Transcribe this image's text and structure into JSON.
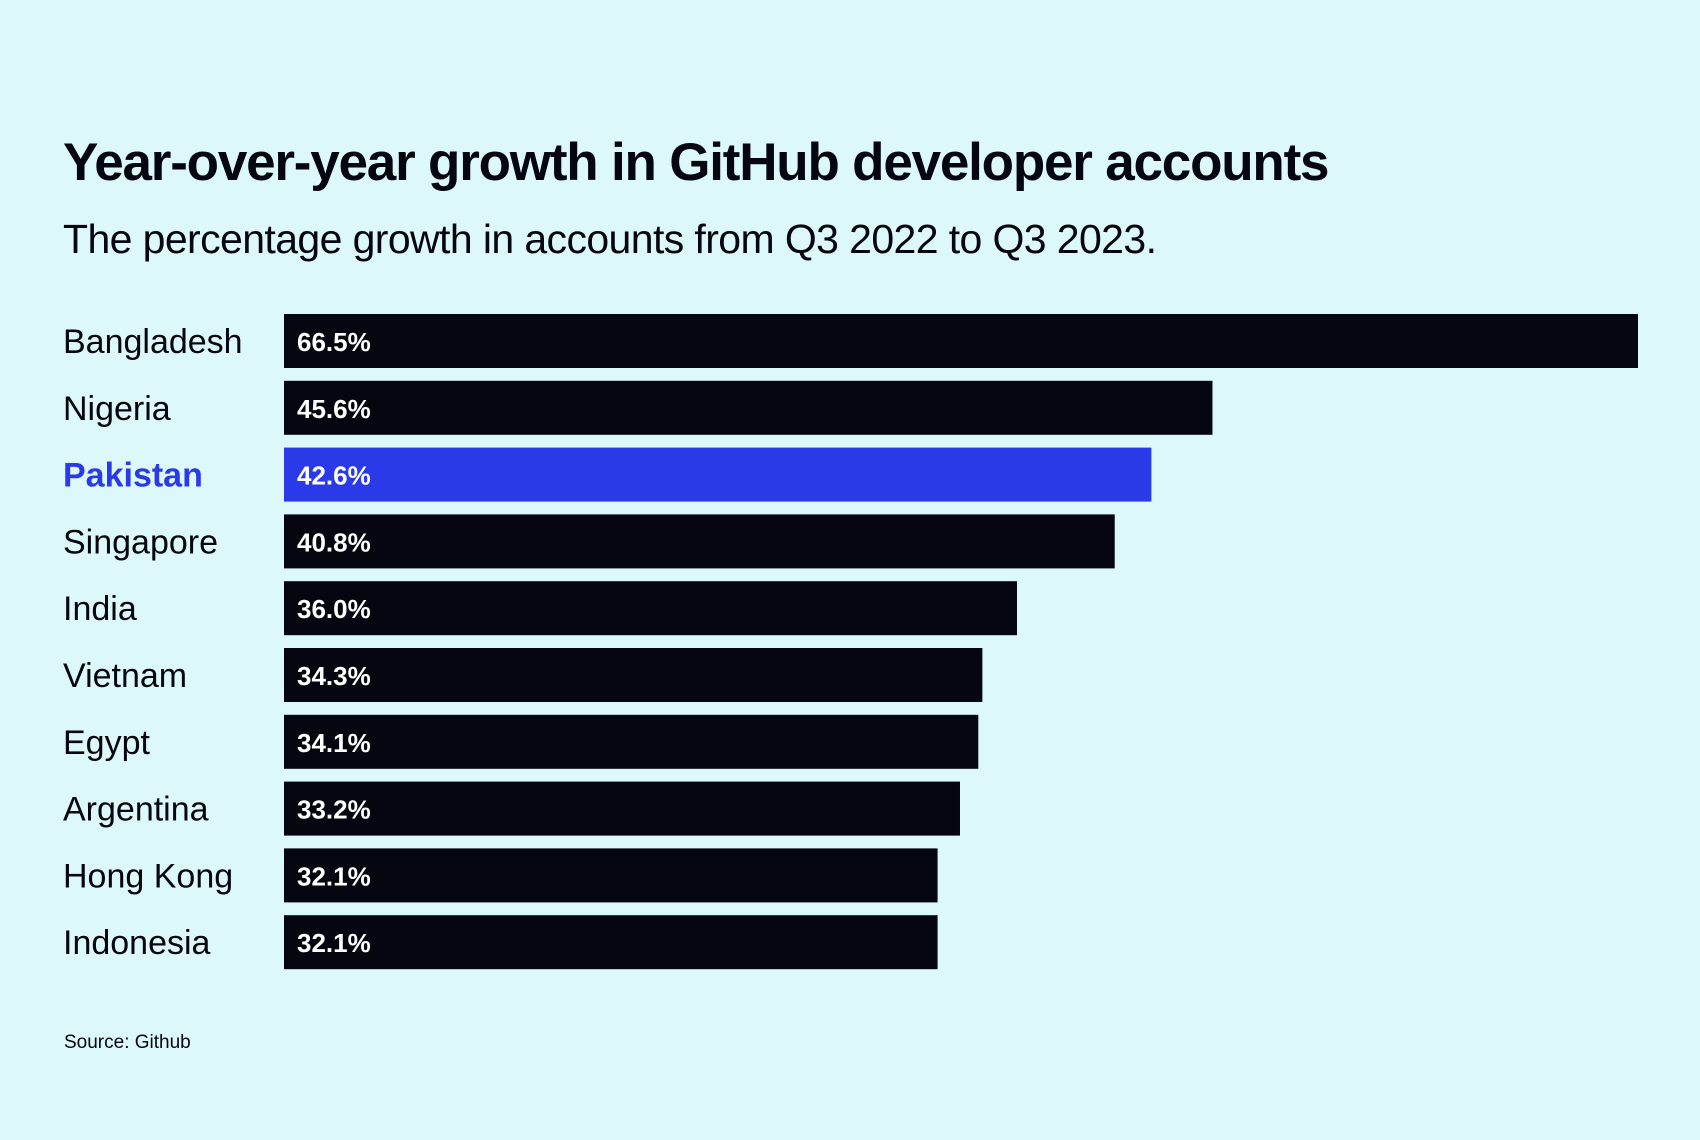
{
  "title": "Year-over-year growth in GitHub developer accounts",
  "subtitle": "The percentage growth in accounts from Q3 2022 to Q3 2023.",
  "source": "Source: Github",
  "colors": {
    "background": "#ddf8f9",
    "bar": "#05060f",
    "highlight": "#2a3ae8",
    "value_text": "#ffffff"
  },
  "chart_data": {
    "type": "bar",
    "orientation": "horizontal",
    "title": "Year-over-year growth in GitHub developer accounts",
    "subtitle": "The percentage growth in accounts from Q3 2022 to Q3 2023.",
    "categories": [
      "Bangladesh",
      "Nigeria",
      "Pakistan",
      "Singapore",
      "India",
      "Vietnam",
      "Egypt",
      "Argentina",
      "Hong Kong",
      "Indonesia"
    ],
    "values": [
      66.5,
      45.6,
      42.6,
      40.8,
      36.0,
      34.3,
      34.1,
      33.2,
      32.1,
      32.1
    ],
    "value_labels": [
      "66.5%",
      "45.6%",
      "42.6%",
      "40.8%",
      "36.0%",
      "34.3%",
      "34.1%",
      "33.2%",
      "32.1%",
      "32.1%"
    ],
    "highlight": "Pakistan",
    "xlim": [
      0,
      66.5
    ],
    "unit": "%",
    "grid": false,
    "legend": "none"
  }
}
